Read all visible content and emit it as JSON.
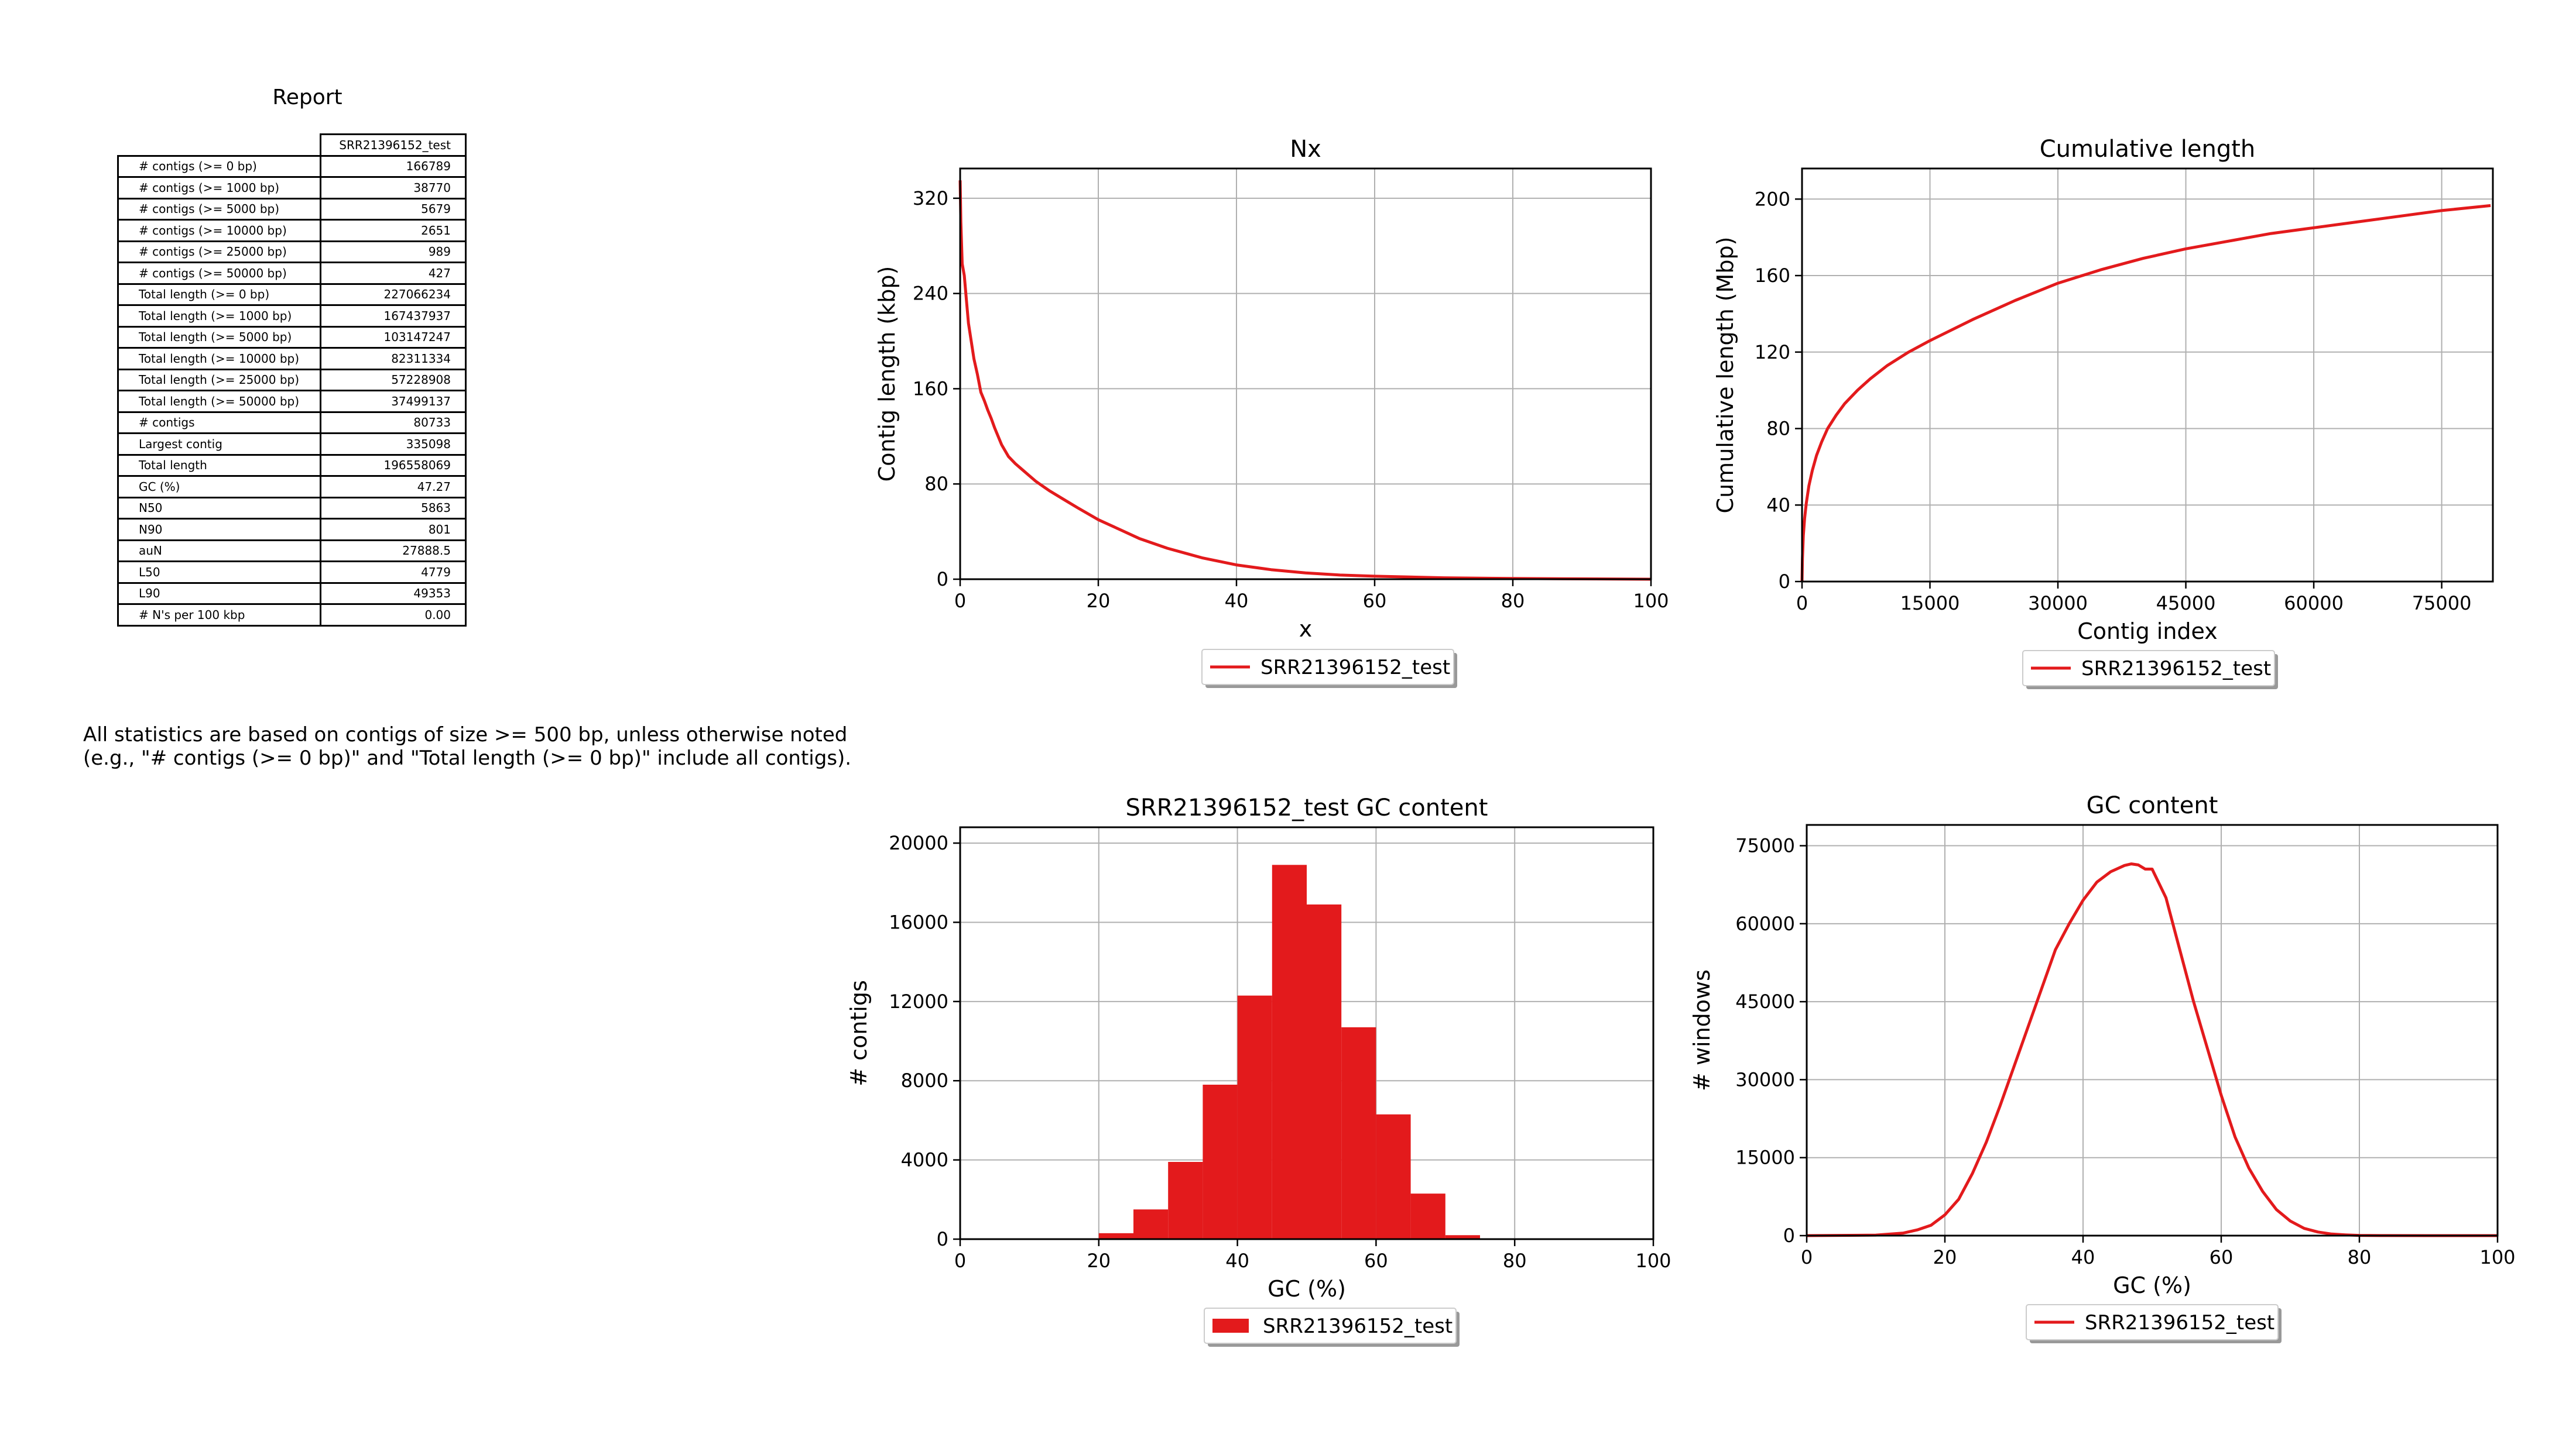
{
  "report": {
    "title": "Report",
    "column_header": "SRR21396152_test",
    "rows": [
      {
        "label": "# contigs (>= 0 bp)",
        "value": "166789"
      },
      {
        "label": "# contigs (>= 1000 bp)",
        "value": "38770"
      },
      {
        "label": "# contigs (>= 5000 bp)",
        "value": "5679"
      },
      {
        "label": "# contigs (>= 10000 bp)",
        "value": "2651"
      },
      {
        "label": "# contigs (>= 25000 bp)",
        "value": "989"
      },
      {
        "label": "# contigs (>= 50000 bp)",
        "value": "427"
      },
      {
        "label": "Total length (>= 0 bp)",
        "value": "227066234"
      },
      {
        "label": "Total length (>= 1000 bp)",
        "value": "167437937"
      },
      {
        "label": "Total length (>= 5000 bp)",
        "value": "103147247"
      },
      {
        "label": "Total length (>= 10000 bp)",
        "value": "82311334"
      },
      {
        "label": "Total length (>= 25000 bp)",
        "value": "57228908"
      },
      {
        "label": "Total length (>= 50000 bp)",
        "value": "37499137"
      },
      {
        "label": "# contigs",
        "value": "80733"
      },
      {
        "label": "Largest contig",
        "value": "335098"
      },
      {
        "label": "Total length",
        "value": "196558069"
      },
      {
        "label": "GC (%)",
        "value": "47.27"
      },
      {
        "label": "N50",
        "value": "5863"
      },
      {
        "label": "N90",
        "value": "801"
      },
      {
        "label": "auN",
        "value": "27888.5"
      },
      {
        "label": "L50",
        "value": "4779"
      },
      {
        "label": "L90",
        "value": "49353"
      },
      {
        "label": "# N's per 100 kbp",
        "value": "0.00"
      }
    ],
    "note_line1": "All statistics are based on contigs of size >= 500 bp, unless otherwise noted",
    "note_line2": "(e.g., \"# contigs (>= 0 bp)\" and \"Total length (>= 0 bp)\" include all contigs)."
  },
  "colors": {
    "series": "#e31a1c",
    "grid": "#b0b0b0",
    "axis": "#000000"
  },
  "chart_data": [
    {
      "type": "line",
      "title": "Nx",
      "xlabel": "x",
      "ylabel": "Contig length (kbp)",
      "xlim": [
        0,
        100
      ],
      "ylim": [
        0,
        345
      ],
      "xticks": [
        0,
        20,
        40,
        60,
        80,
        100
      ],
      "yticks": [
        0,
        80,
        160,
        240,
        320
      ],
      "grid": true,
      "legend": "bottom-center",
      "series": [
        {
          "name": "SRR21396152_test",
          "x": [
            0,
            0.1,
            0.3,
            0.6,
            0.9,
            1.2,
            1.6,
            2,
            2.5,
            3,
            3.5,
            4,
            4.5,
            5,
            5.5,
            6,
            6.5,
            7,
            8,
            9,
            10,
            11,
            12,
            13,
            15,
            17,
            20,
            23,
            26,
            30,
            35,
            40,
            45,
            50,
            55,
            60,
            70,
            80,
            90,
            100
          ],
          "y": [
            335,
            300,
            265,
            255,
            235,
            215,
            200,
            185,
            172,
            157,
            150,
            142,
            135,
            127,
            120,
            113,
            108,
            103,
            97,
            92,
            87,
            82,
            78,
            74,
            67,
            60,
            50,
            42,
            34,
            26,
            18,
            12,
            8,
            5.3,
            3.5,
            2.5,
            1.2,
            0.6,
            0.3,
            0
          ]
        }
      ]
    },
    {
      "type": "line",
      "title": "Cumulative length",
      "xlabel": "Contig index",
      "ylabel": "Cumulative length (Mbp)",
      "xlim": [
        0,
        81000
      ],
      "ylim": [
        0,
        216
      ],
      "xticks": [
        0,
        15000,
        30000,
        45000,
        60000,
        75000
      ],
      "yticks": [
        0,
        40,
        80,
        120,
        160,
        200
      ],
      "grid": true,
      "legend": "bottom-center",
      "series": [
        {
          "name": "SRR21396152_test",
          "x": [
            0,
            50,
            150,
            300,
            500,
            800,
            1200,
            1700,
            2300,
            3000,
            4000,
            5000,
            6500,
            8000,
            10000,
            12500,
            15000,
            20000,
            25000,
            30000,
            35000,
            40000,
            45000,
            50000,
            55000,
            60000,
            65000,
            70000,
            75000,
            80733
          ],
          "y": [
            0,
            12,
            24,
            33,
            41,
            50,
            58,
            66,
            73,
            80,
            87,
            93,
            100,
            106,
            113,
            120,
            126,
            137,
            147,
            156,
            163,
            169,
            174,
            178,
            182,
            185,
            188,
            191,
            194,
            196.6
          ]
        }
      ]
    },
    {
      "type": "bar",
      "title": "SRR21396152_test GC content",
      "xlabel": "GC (%)",
      "ylabel": "# contigs",
      "xlim": [
        0,
        100
      ],
      "ylim": [
        0,
        20800
      ],
      "xticks": [
        0,
        20,
        40,
        60,
        80,
        100
      ],
      "yticks": [
        0,
        4000,
        8000,
        12000,
        16000,
        20000
      ],
      "grid": true,
      "legend": "bottom-center",
      "bin_edges": [
        20,
        25,
        30,
        35,
        40,
        45,
        50,
        55,
        60,
        65,
        70,
        75
      ],
      "series": [
        {
          "name": "SRR21396152_test",
          "values": [
            300,
            1500,
            3900,
            7800,
            12300,
            18900,
            16900,
            10700,
            6300,
            2300,
            200
          ]
        }
      ]
    },
    {
      "type": "line",
      "title": "GC content",
      "xlabel": "GC (%)",
      "ylabel": "# windows",
      "xlim": [
        0,
        100
      ],
      "ylim": [
        0,
        79000
      ],
      "xticks": [
        0,
        20,
        40,
        60,
        80,
        100
      ],
      "yticks": [
        0,
        15000,
        30000,
        45000,
        60000,
        75000
      ],
      "grid": true,
      "legend": "bottom-center",
      "series": [
        {
          "name": "SRR21396152_test",
          "x": [
            0,
            10,
            14,
            16,
            18,
            20,
            22,
            24,
            26,
            28,
            30,
            32,
            34,
            36,
            38,
            40,
            42,
            44,
            46,
            47,
            48,
            49,
            50,
            52,
            54,
            56,
            58,
            60,
            62,
            64,
            66,
            68,
            70,
            72,
            74,
            76,
            78,
            80,
            84,
            90,
            100
          ],
          "y": [
            0,
            100,
            500,
            1100,
            2000,
            4000,
            7000,
            12000,
            18000,
            25000,
            32500,
            40000,
            47500,
            55000,
            60000,
            64500,
            68000,
            70000,
            71200,
            71500,
            71300,
            70500,
            70500,
            65000,
            55000,
            45000,
            36000,
            27000,
            19000,
            13000,
            8500,
            5000,
            2800,
            1400,
            700,
            300,
            150,
            50,
            10,
            0,
            0
          ]
        }
      ]
    }
  ]
}
